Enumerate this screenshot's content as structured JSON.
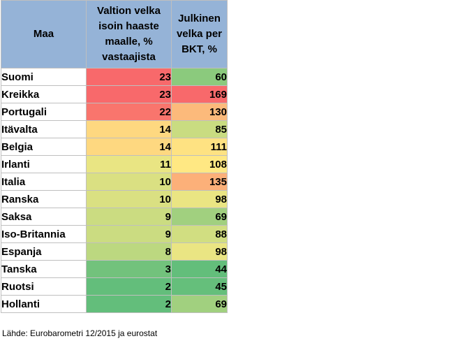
{
  "chart_data": {
    "type": "table",
    "columns": [
      "Maa",
      "Valtion velka isoin haaste maalle, % vastaajista",
      "Julkinen velka per BKT, %"
    ],
    "rows": [
      {
        "country": "Suomi",
        "survey": 23,
        "debt": 60
      },
      {
        "country": "Kreikka",
        "survey": 23,
        "debt": 169
      },
      {
        "country": "Portugali",
        "survey": 22,
        "debt": 130
      },
      {
        "country": "Itävalta",
        "survey": 14,
        "debt": 85
      },
      {
        "country": "Belgia",
        "survey": 14,
        "debt": 111
      },
      {
        "country": "Irlanti",
        "survey": 11,
        "debt": 108
      },
      {
        "country": "Italia",
        "survey": 10,
        "debt": 135
      },
      {
        "country": "Ranska",
        "survey": 10,
        "debt": 98
      },
      {
        "country": "Saksa",
        "survey": 9,
        "debt": 69
      },
      {
        "country": "Iso-Britannia",
        "survey": 9,
        "debt": 88
      },
      {
        "country": "Espanja",
        "survey": 8,
        "debt": 98
      },
      {
        "country": "Tanska",
        "survey": 3,
        "debt": 44
      },
      {
        "country": "Ruotsi",
        "survey": 2,
        "debt": 45
      },
      {
        "country": "Hollanti",
        "survey": 2,
        "debt": 69
      }
    ],
    "color_scale": {
      "low": "#63be7b",
      "mid": "#ffeb84",
      "high": "#f8696b"
    }
  },
  "source": "Lähde: Eurobarometri 12/2015 ja eurostat"
}
